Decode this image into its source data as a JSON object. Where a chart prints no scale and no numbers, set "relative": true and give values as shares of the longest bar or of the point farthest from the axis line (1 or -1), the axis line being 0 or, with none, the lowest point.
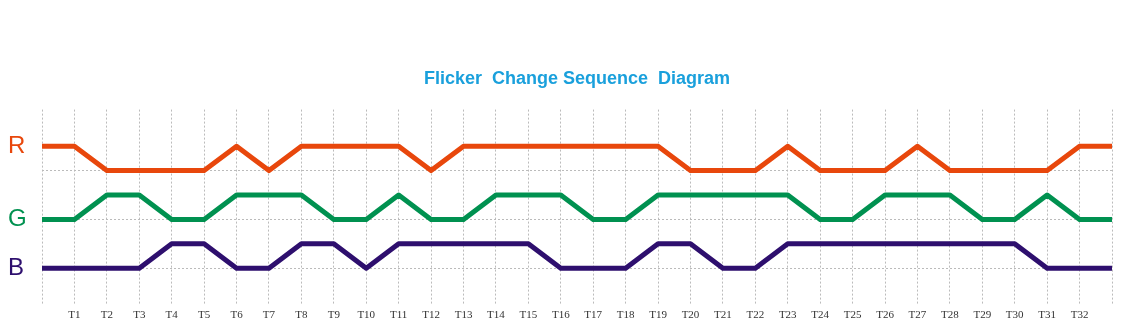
{
  "chart_data": {
    "type": "line",
    "title": "Flicker  Change Sequence  Diagram",
    "relative": true,
    "categories": [
      null,
      "T1",
      "T2",
      "T3",
      "T4",
      "T5",
      "T6",
      "T7",
      "T8",
      "T9",
      "T10",
      "T11",
      "T12",
      "T13",
      "T14",
      "T15",
      "T16",
      "T17",
      "T18",
      "T19",
      "T20",
      "T21",
      "T22",
      "T23",
      "T24",
      "T25",
      "T26",
      "T27",
      "T28",
      "T29",
      "T30",
      "T31",
      "T32",
      null
    ],
    "series": [
      {
        "name": "R",
        "color": "#e8470c",
        "values": [
          1,
          1,
          0.8,
          0.8,
          0.8,
          0.8,
          1,
          0.8,
          1,
          1,
          1,
          1,
          0.8,
          1,
          1,
          1,
          1,
          1,
          1,
          1,
          0.8,
          0.8,
          0.8,
          1,
          0.8,
          0.8,
          0.8,
          1,
          0.8,
          0.8,
          0.8,
          0.8,
          1,
          1
        ]
      },
      {
        "name": "G",
        "color": "#009150",
        "values": [
          0.4,
          0.4,
          0.6,
          0.6,
          0.4,
          0.4,
          0.6,
          0.6,
          0.6,
          0.4,
          0.4,
          0.6,
          0.4,
          0.4,
          0.6,
          0.6,
          0.6,
          0.4,
          0.4,
          0.6,
          0.6,
          0.6,
          0.6,
          0.6,
          0.4,
          0.4,
          0.6,
          0.6,
          0.6,
          0.4,
          0.4,
          0.6,
          0.4,
          0.4
        ]
      },
      {
        "name": "B",
        "color": "#2e0f6e",
        "values": [
          0,
          0,
          0,
          0,
          0.2,
          0.2,
          0,
          0,
          0.2,
          0.2,
          0,
          0.2,
          0.2,
          0.2,
          0.2,
          0.2,
          0,
          0,
          0,
          0.2,
          0.2,
          0,
          0,
          0.2,
          0.2,
          0.2,
          0.2,
          0.2,
          0.2,
          0.2,
          0.2,
          0,
          0,
          0
        ]
      }
    ],
    "grid": true,
    "legend": false,
    "marker": "none",
    "line_style": "solid"
  }
}
